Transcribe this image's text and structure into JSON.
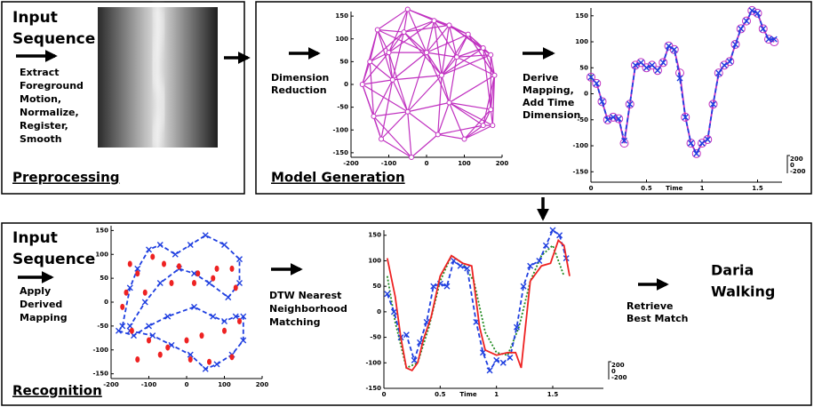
{
  "preprocessing": {
    "input_lines": [
      "Input",
      "Sequence"
    ],
    "steps": [
      "Extract",
      "Foreground",
      "Motion,",
      "Normalize,",
      "Register,",
      "Smooth"
    ],
    "label": "Preprocessing"
  },
  "model_generation": {
    "step1": [
      "Dimension",
      "Reduction"
    ],
    "step2": [
      "Derive",
      "Mapping,",
      "Add Time",
      "Dimension"
    ],
    "label": "Model Generation"
  },
  "recognition": {
    "input_lines": [
      "Input",
      "Sequence"
    ],
    "step1": [
      "Apply",
      "Derived",
      "Mapping"
    ],
    "step2": [
      "DTW Nearest",
      "Neighborhood",
      "Matching"
    ],
    "step3": [
      "Retrieve",
      "Best Match"
    ],
    "result": [
      "Daria",
      "Walking"
    ],
    "label": "Recognition"
  },
  "charts": {
    "embedding": {
      "type": "scatter",
      "network": true,
      "xlim": [
        -200,
        200
      ],
      "ylim": [
        -160,
        160
      ],
      "xticks": [
        -200,
        -100,
        0,
        100,
        200
      ],
      "yticks": [
        150,
        100,
        50,
        0,
        -50,
        -100,
        -150
      ],
      "series": [
        {
          "color": "#c030c0",
          "marker": "node",
          "line": false,
          "x": [
            -50,
            -130,
            -60,
            20,
            60,
            110,
            150,
            -150,
            -100,
            0,
            80,
            170,
            -170,
            -90,
            40,
            180,
            -140,
            -50,
            60,
            170,
            -120,
            -40,
            30,
            100,
            150,
            175
          ],
          "y": [
            165,
            120,
            115,
            140,
            130,
            110,
            80,
            50,
            70,
            70,
            60,
            65,
            0,
            10,
            20,
            20,
            -70,
            -60,
            -40,
            -55,
            -120,
            -160,
            -110,
            -120,
            -90,
            -90
          ]
        }
      ]
    },
    "mapping": {
      "type": "line",
      "xlim": [
        0,
        1.72
      ],
      "ylim": [
        -170,
        165
      ],
      "xticks": [
        0,
        0.5,
        1,
        1.5
      ],
      "yticks": [
        150,
        100,
        50,
        0,
        -50,
        -100,
        -150
      ],
      "xlabel": "Time",
      "zticks": [
        200,
        0,
        -200
      ],
      "series": [
        {
          "color": "#c030c0",
          "marker": "circle",
          "dash": "solid",
          "x": [
            0,
            0.05,
            0.1,
            0.15,
            0.2,
            0.25,
            0.3,
            0.35,
            0.4,
            0.45,
            0.5,
            0.55,
            0.6,
            0.65,
            0.7,
            0.75,
            0.8,
            0.85,
            0.9,
            0.95,
            1,
            1.05,
            1.1,
            1.15,
            1.2,
            1.25,
            1.3,
            1.35,
            1.4,
            1.45,
            1.5,
            1.55,
            1.6,
            1.65
          ],
          "y": [
            32,
            20,
            -15,
            -50,
            -45,
            -48,
            -95,
            -20,
            55,
            60,
            50,
            55,
            45,
            60,
            92,
            85,
            40,
            -45,
            -95,
            -115,
            -95,
            -88,
            -20,
            40,
            55,
            62,
            95,
            125,
            140,
            160,
            155,
            125,
            105,
            100
          ]
        },
        {
          "color": "#1f3fe0",
          "marker": "x",
          "dash": "dashed",
          "x": [
            0,
            0.05,
            0.1,
            0.15,
            0.2,
            0.25,
            0.3,
            0.35,
            0.4,
            0.45,
            0.5,
            0.55,
            0.6,
            0.65,
            0.7,
            0.75,
            0.8,
            0.85,
            0.9,
            0.95,
            1,
            1.05,
            1.1,
            1.15,
            1.2,
            1.25,
            1.3,
            1.35,
            1.4,
            1.45,
            1.5,
            1.55,
            1.6,
            1.65
          ],
          "y": [
            32,
            20,
            -15,
            -50,
            -45,
            -48,
            -90,
            -20,
            55,
            60,
            50,
            55,
            45,
            60,
            92,
            85,
            30,
            -45,
            -95,
            -115,
            -95,
            -88,
            -20,
            40,
            55,
            62,
            95,
            125,
            140,
            160,
            155,
            125,
            105,
            105
          ]
        }
      ]
    },
    "mapped_input": {
      "type": "scatter",
      "xlim": [
        -200,
        200
      ],
      "ylim": [
        -160,
        160
      ],
      "xticks": [
        -200,
        -100,
        0,
        100,
        200
      ],
      "yticks": [
        150,
        100,
        50,
        0,
        -50,
        -100,
        -150
      ],
      "series": [
        {
          "color": "#1f3fe0",
          "marker": "x",
          "dash": "dashed",
          "x": [
            -170,
            -150,
            -130,
            -100,
            -70,
            -30,
            10,
            50,
            100,
            140,
            140,
            110,
            60,
            20,
            -20,
            -70,
            -110,
            -150
          ],
          "y": [
            -50,
            30,
            70,
            110,
            120,
            100,
            120,
            140,
            120,
            90,
            40,
            10,
            40,
            60,
            70,
            40,
            0,
            -50
          ]
        },
        {
          "color": "#1f3fe0",
          "marker": "x",
          "dash": "dashed",
          "x": [
            -180,
            -140,
            -100,
            -50,
            20,
            70,
            100,
            130,
            150,
            150,
            120,
            80,
            50,
            10,
            -40,
            -90,
            -150
          ],
          "y": [
            -60,
            -70,
            -50,
            -30,
            -10,
            -30,
            -40,
            -30,
            -30,
            -80,
            -110,
            -130,
            -140,
            -110,
            -90,
            -70,
            -60
          ]
        },
        {
          "color": "#ee2222",
          "marker": "dot",
          "line": false,
          "x": [
            -150,
            -130,
            -160,
            -90,
            -60,
            -20,
            30,
            80,
            120,
            -170,
            -110,
            -40,
            20,
            70,
            130,
            -145,
            -100,
            -50,
            0,
            40,
            100,
            140,
            -130,
            -70,
            10,
            60,
            120
          ],
          "y": [
            80,
            60,
            20,
            95,
            80,
            75,
            60,
            70,
            70,
            -10,
            20,
            40,
            40,
            50,
            30,
            -60,
            -80,
            -95,
            -80,
            -70,
            -60,
            -40,
            -120,
            -110,
            -120,
            -125,
            -115
          ]
        }
      ]
    },
    "matching": {
      "type": "line",
      "xlim": [
        0,
        1.95
      ],
      "ylim": [
        -150,
        160
      ],
      "xticks": [
        0,
        0.5,
        1,
        1.5
      ],
      "yticks": [
        150,
        100,
        50,
        0,
        -50,
        -100,
        -150
      ],
      "xlabel": "Time",
      "zticks": [
        200,
        0,
        -200
      ],
      "series": [
        {
          "color": "#228b22",
          "dash": "dotted",
          "x": [
            0.03,
            0.1,
            0.2,
            0.3,
            0.4,
            0.5,
            0.6,
            0.7,
            0.8,
            0.9,
            1,
            1.1,
            1.2,
            1.3,
            1.4,
            1.5,
            1.6
          ],
          "y": [
            70,
            -20,
            -110,
            -100,
            -30,
            60,
            110,
            95,
            60,
            -40,
            -80,
            -85,
            -30,
            60,
            110,
            130,
            70
          ]
        },
        {
          "color": "#1f3fe0",
          "marker": "x",
          "dash": "dashed",
          "x": [
            0.03,
            0.09,
            0.15,
            0.2,
            0.27,
            0.32,
            0.38,
            0.44,
            0.5,
            0.56,
            0.62,
            0.68,
            0.74,
            0.82,
            0.88,
            0.94,
            1,
            1.06,
            1.12,
            1.18,
            1.24,
            1.3,
            1.38,
            1.44,
            1.5,
            1.56,
            1.62
          ],
          "y": [
            35,
            0,
            -50,
            -45,
            -95,
            -60,
            -20,
            50,
            55,
            50,
            100,
            90,
            85,
            -20,
            -80,
            -115,
            -95,
            -100,
            -90,
            -30,
            50,
            90,
            100,
            130,
            160,
            150,
            105
          ]
        },
        {
          "color": "#ee2222",
          "dash": "solid",
          "x": [
            0.03,
            0.1,
            0.15,
            0.2,
            0.25,
            0.3,
            0.35,
            0.42,
            0.5,
            0.6,
            0.7,
            0.78,
            0.85,
            0.9,
            1,
            1.1,
            1.17,
            1.22,
            1.3,
            1.4,
            1.48,
            1.55,
            1.6,
            1.65
          ],
          "y": [
            105,
            30,
            -50,
            -110,
            -115,
            -100,
            -55,
            -10,
            70,
            110,
            95,
            90,
            -30,
            -75,
            -85,
            -80,
            -80,
            -110,
            60,
            90,
            95,
            140,
            130,
            70
          ]
        }
      ]
    }
  }
}
